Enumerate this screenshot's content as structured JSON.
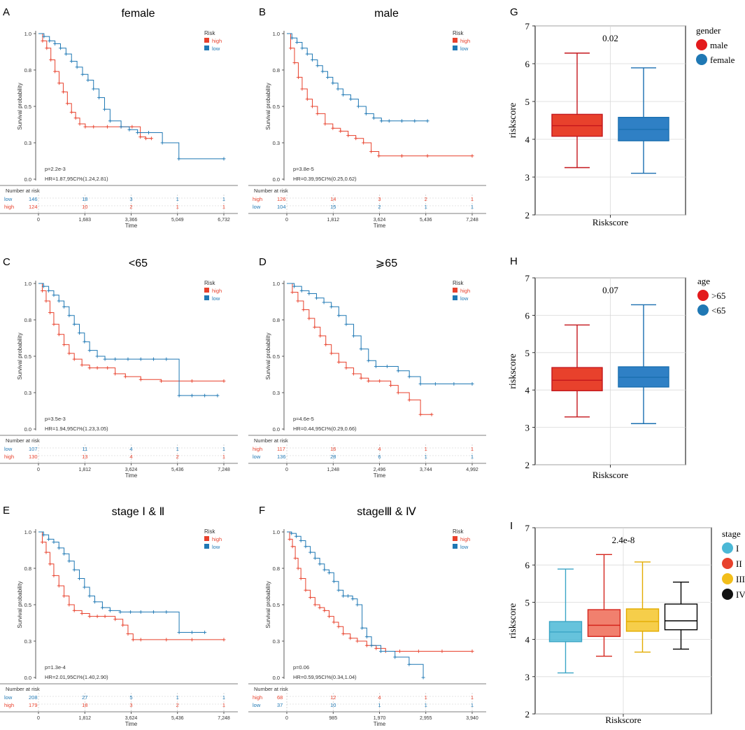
{
  "colors": {
    "high": "#e8412c",
    "low": "#1f78b4",
    "grid": "#d9d9d9",
    "axis": "#333333",
    "stage": [
      "#4bb8d6",
      "#e8412c",
      "#f2be1a",
      "#111111"
    ],
    "box_fill": [
      "#e8412c",
      "#2f80c5"
    ],
    "stage_fill": [
      "#4bb8d6",
      "#ee6a55",
      "#f5c52a",
      "#ffffff"
    ]
  },
  "chart_data": [
    {
      "panel": "A",
      "type": "line",
      "title": "female",
      "xlabel": "Time",
      "ylabel": "Survival probability",
      "xticks": [
        "0",
        "1,683",
        "3,366",
        "5,049",
        "6,732"
      ],
      "xlim": [
        0,
        6732
      ],
      "yticks": [
        "0.0",
        "0.3",
        "0.5",
        "0.8",
        "1.0"
      ],
      "ylim": [
        0,
        1
      ],
      "legend_title": "Risk",
      "legend": [
        "high",
        "low"
      ],
      "pval": "p=2.2e-3",
      "hr": "HR=1.87,95CI%(1.24,2.81)",
      "risk_title": "Number at risk",
      "risk_rows": [
        {
          "name": "low",
          "values": [
            "146",
            "18",
            "3",
            "1",
            "1"
          ]
        },
        {
          "name": "high",
          "values": [
            "124",
            "10",
            "2",
            "1",
            "1"
          ]
        }
      ],
      "series": [
        {
          "name": "high",
          "x": [
            0,
            150,
            300,
            450,
            600,
            750,
            900,
            1050,
            1200,
            1350,
            1500,
            1700,
            2000,
            2500,
            3000,
            3400,
            3700,
            3900,
            4100
          ],
          "y": [
            1.0,
            0.95,
            0.9,
            0.82,
            0.74,
            0.66,
            0.6,
            0.52,
            0.46,
            0.42,
            0.38,
            0.36,
            0.36,
            0.36,
            0.36,
            0.36,
            0.29,
            0.28,
            0.28
          ]
        },
        {
          "name": "low",
          "x": [
            0,
            200,
            400,
            600,
            800,
            1000,
            1200,
            1400,
            1600,
            1800,
            2000,
            2200,
            2400,
            2600,
            3000,
            3300,
            3600,
            4000,
            4500,
            5100,
            6732
          ],
          "y": [
            1.0,
            0.98,
            0.95,
            0.93,
            0.9,
            0.86,
            0.81,
            0.77,
            0.72,
            0.68,
            0.62,
            0.56,
            0.48,
            0.4,
            0.36,
            0.34,
            0.32,
            0.32,
            0.25,
            0.14,
            0.14
          ]
        }
      ]
    },
    {
      "panel": "B",
      "type": "line",
      "title": "male",
      "xlabel": "Time",
      "ylabel": "Survival probability",
      "xticks": [
        "0",
        "1,812",
        "3,624",
        "5,436",
        "7,248"
      ],
      "xlim": [
        0,
        7248
      ],
      "yticks": [
        "0.0",
        "0.3",
        "0.5",
        "0.8",
        "1.0"
      ],
      "ylim": [
        0,
        1
      ],
      "legend_title": "Risk",
      "legend": [
        "high",
        "low"
      ],
      "pval": "p=3.8e-5",
      "hr": "HR=0.39,95CI%(0.25,0.62)",
      "risk_title": "Number at risk",
      "risk_rows": [
        {
          "name": "high",
          "values": [
            "126",
            "14",
            "3",
            "2",
            "1"
          ]
        },
        {
          "name": "low",
          "values": [
            "104",
            "15",
            "2",
            "1",
            "1"
          ]
        }
      ],
      "series": [
        {
          "name": "high",
          "x": [
            0,
            150,
            300,
            450,
            600,
            800,
            1000,
            1200,
            1500,
            1800,
            2100,
            2400,
            2700,
            3000,
            3300,
            3600,
            4500,
            5500,
            7248
          ],
          "y": [
            1.0,
            0.9,
            0.8,
            0.7,
            0.62,
            0.55,
            0.5,
            0.45,
            0.38,
            0.35,
            0.33,
            0.3,
            0.28,
            0.25,
            0.19,
            0.16,
            0.16,
            0.16,
            0.16
          ]
        },
        {
          "name": "low",
          "x": [
            0,
            200,
            400,
            600,
            800,
            1000,
            1200,
            1400,
            1600,
            1800,
            2000,
            2200,
            2500,
            2800,
            3100,
            3400,
            3700,
            4000,
            4500,
            5000,
            5500
          ],
          "y": [
            1.0,
            0.97,
            0.94,
            0.9,
            0.86,
            0.82,
            0.78,
            0.74,
            0.7,
            0.66,
            0.62,
            0.58,
            0.55,
            0.5,
            0.45,
            0.42,
            0.4,
            0.4,
            0.4,
            0.4,
            0.4
          ]
        }
      ]
    },
    {
      "panel": "C",
      "type": "line",
      "title": "<65",
      "xlabel": "Time",
      "ylabel": "Survival probability",
      "xticks": [
        "0",
        "1,812",
        "3,624",
        "5,436",
        "7,248"
      ],
      "xlim": [
        0,
        7248
      ],
      "yticks": [
        "0.0",
        "0.3",
        "0.5",
        "0.8",
        "1.0"
      ],
      "ylim": [
        0,
        1
      ],
      "legend_title": "Risk",
      "legend": [
        "high",
        "low"
      ],
      "pval": "p=3.5e-3",
      "hr": "HR=1.94,95CI%(1.23,3.05)",
      "risk_title": "Number at risk",
      "risk_rows": [
        {
          "name": "low",
          "values": [
            "107",
            "11",
            "4",
            "1",
            "1"
          ]
        },
        {
          "name": "high",
          "values": [
            "130",
            "13",
            "4",
            "2",
            "1"
          ]
        }
      ],
      "series": [
        {
          "name": "high",
          "x": [
            0,
            150,
            300,
            450,
            600,
            800,
            1000,
            1200,
            1400,
            1700,
            2000,
            2300,
            2700,
            3000,
            3400,
            4000,
            4800,
            6000,
            7248
          ],
          "y": [
            1.0,
            0.95,
            0.88,
            0.8,
            0.72,
            0.65,
            0.58,
            0.52,
            0.48,
            0.44,
            0.42,
            0.42,
            0.42,
            0.38,
            0.36,
            0.34,
            0.33,
            0.33,
            0.33
          ]
        },
        {
          "name": "low",
          "x": [
            0,
            200,
            400,
            600,
            800,
            1000,
            1200,
            1400,
            1600,
            1800,
            2000,
            2300,
            2600,
            3000,
            3500,
            4000,
            4500,
            5000,
            5500,
            6000,
            6500,
            7000
          ],
          "y": [
            1.0,
            0.98,
            0.95,
            0.92,
            0.88,
            0.84,
            0.78,
            0.72,
            0.66,
            0.6,
            0.54,
            0.5,
            0.48,
            0.48,
            0.48,
            0.48,
            0.48,
            0.48,
            0.23,
            0.23,
            0.23,
            0.23
          ]
        }
      ]
    },
    {
      "panel": "D",
      "type": "line",
      "title": "⩾65",
      "xlabel": "Time",
      "ylabel": "Survival probability",
      "xticks": [
        "0",
        "1,248",
        "2,496",
        "3,744",
        "4,992"
      ],
      "xlim": [
        0,
        4992
      ],
      "yticks": [
        "0.0",
        "0.3",
        "0.5",
        "0.8",
        "1.0"
      ],
      "ylim": [
        0,
        1
      ],
      "legend_title": "Risk",
      "legend": [
        "high",
        "low"
      ],
      "pval": "p=4.6e-5",
      "hr": "HR=0.44,95CI%(0.29,0.66)",
      "risk_title": "Number at risk",
      "risk_rows": [
        {
          "name": "high",
          "values": [
            "117",
            "16",
            "4",
            "1",
            "1"
          ]
        },
        {
          "name": "low",
          "values": [
            "136",
            "28",
            "6",
            "1",
            "1"
          ]
        }
      ],
      "series": [
        {
          "name": "high",
          "x": [
            0,
            150,
            300,
            450,
            600,
            750,
            900,
            1050,
            1200,
            1400,
            1600,
            1800,
            2000,
            2200,
            2500,
            2800,
            3000,
            3300,
            3600,
            3900
          ],
          "y": [
            1.0,
            0.94,
            0.88,
            0.82,
            0.76,
            0.7,
            0.64,
            0.58,
            0.52,
            0.46,
            0.42,
            0.38,
            0.35,
            0.33,
            0.33,
            0.3,
            0.25,
            0.2,
            0.1,
            0.1
          ]
        },
        {
          "name": "low",
          "x": [
            0,
            200,
            400,
            600,
            800,
            1000,
            1200,
            1400,
            1600,
            1800,
            2000,
            2200,
            2400,
            2700,
            3000,
            3300,
            3600,
            4000,
            4500,
            4992
          ],
          "y": [
            1.0,
            0.98,
            0.95,
            0.93,
            0.9,
            0.87,
            0.84,
            0.78,
            0.72,
            0.64,
            0.55,
            0.47,
            0.43,
            0.43,
            0.4,
            0.36,
            0.31,
            0.31,
            0.31,
            0.31
          ]
        }
      ]
    },
    {
      "panel": "E",
      "type": "line",
      "title": "stage Ⅰ & Ⅱ",
      "xlabel": "Time",
      "ylabel": "Survival probability",
      "xticks": [
        "0",
        "1,812",
        "3,624",
        "5,436",
        "7,248"
      ],
      "xlim": [
        0,
        7248
      ],
      "yticks": [
        "0.0",
        "0.3",
        "0.5",
        "0.8",
        "1.0"
      ],
      "ylim": [
        0,
        1
      ],
      "legend_title": "Risk",
      "legend": [
        "high",
        "low"
      ],
      "pval": "p=1.3e-4",
      "hr": "HR=2.01,95CI%(1.40,2.90)",
      "risk_title": "Number at risk",
      "risk_rows": [
        {
          "name": "low",
          "values": [
            "208",
            "27",
            "5",
            "1",
            "1"
          ]
        },
        {
          "name": "high",
          "values": [
            "179",
            "18",
            "3",
            "2",
            "1"
          ]
        }
      ],
      "series": [
        {
          "name": "high",
          "x": [
            0,
            150,
            300,
            450,
            600,
            800,
            1000,
            1200,
            1400,
            1700,
            2000,
            2300,
            2600,
            3000,
            3300,
            3500,
            3700,
            4000,
            5000,
            6000,
            7248
          ],
          "y": [
            1.0,
            0.93,
            0.86,
            0.78,
            0.7,
            0.63,
            0.56,
            0.5,
            0.46,
            0.44,
            0.42,
            0.42,
            0.42,
            0.4,
            0.36,
            0.3,
            0.26,
            0.26,
            0.26,
            0.26,
            0.26
          ]
        },
        {
          "name": "low",
          "x": [
            0,
            200,
            400,
            600,
            800,
            1000,
            1200,
            1400,
            1600,
            1800,
            2000,
            2200,
            2500,
            2800,
            3200,
            3600,
            4000,
            4500,
            5000,
            5500,
            6000,
            6500
          ],
          "y": [
            1.0,
            0.98,
            0.95,
            0.93,
            0.89,
            0.85,
            0.8,
            0.74,
            0.68,
            0.62,
            0.56,
            0.52,
            0.48,
            0.46,
            0.45,
            0.45,
            0.45,
            0.45,
            0.45,
            0.31,
            0.31,
            0.31
          ]
        }
      ]
    },
    {
      "panel": "F",
      "type": "line",
      "title": "stageⅢ & Ⅳ",
      "xlabel": "Time",
      "ylabel": "Survival probability",
      "xticks": [
        "0",
        "985",
        "1,970",
        "2,955",
        "3,940"
      ],
      "xlim": [
        0,
        3940
      ],
      "yticks": [
        "0.0",
        "0.3",
        "0.5",
        "0.8",
        "1.0"
      ],
      "ylim": [
        0,
        1
      ],
      "legend_title": "Risk",
      "legend": [
        "high",
        "low"
      ],
      "pval": "p=0.06",
      "hr": "HR=0.59,95CI%(0.34,1.04)",
      "risk_title": "Number at risk",
      "risk_rows": [
        {
          "name": "high",
          "values": [
            "68",
            "12",
            "4",
            "1",
            "1"
          ]
        },
        {
          "name": "low",
          "values": [
            "37",
            "10",
            "1",
            "1",
            "1"
          ]
        }
      ],
      "series": [
        {
          "name": "high",
          "x": [
            0,
            60,
            120,
            180,
            240,
            300,
            400,
            500,
            600,
            700,
            800,
            900,
            1000,
            1100,
            1200,
            1350,
            1500,
            1700,
            1900,
            2100,
            2400,
            2800,
            3300,
            3940
          ],
          "y": [
            1.0,
            0.95,
            0.9,
            0.82,
            0.75,
            0.68,
            0.6,
            0.55,
            0.5,
            0.48,
            0.46,
            0.42,
            0.38,
            0.35,
            0.3,
            0.27,
            0.25,
            0.22,
            0.2,
            0.18,
            0.18,
            0.18,
            0.18,
            0.18
          ]
        },
        {
          "name": "low",
          "x": [
            0,
            100,
            200,
            300,
            400,
            500,
            600,
            700,
            800,
            900,
            1000,
            1100,
            1200,
            1300,
            1400,
            1500,
            1600,
            1700,
            1800,
            2000,
            2300,
            2600,
            2900
          ],
          "y": [
            1.0,
            0.99,
            0.97,
            0.94,
            0.9,
            0.86,
            0.82,
            0.78,
            0.74,
            0.72,
            0.66,
            0.6,
            0.56,
            0.56,
            0.54,
            0.5,
            0.34,
            0.28,
            0.22,
            0.18,
            0.14,
            0.09,
            0.0
          ]
        }
      ]
    },
    {
      "panel": "G",
      "type": "box",
      "title": "0.02",
      "xlabel": "Riskscore",
      "ylabel": "riskscore",
      "ylim": [
        2,
        7
      ],
      "yticks": [
        "2",
        "3",
        "4",
        "5",
        "6",
        "7"
      ],
      "legend_title": "gender",
      "legend": [
        "male",
        "female"
      ],
      "boxes": [
        {
          "name": "male",
          "min": 3.25,
          "q1": 4.08,
          "median": 4.36,
          "q3": 4.66,
          "max": 6.28
        },
        {
          "name": "female",
          "min": 3.1,
          "q1": 3.96,
          "median": 4.26,
          "q3": 4.58,
          "max": 5.89
        }
      ]
    },
    {
      "panel": "H",
      "type": "box",
      "title": "0.07",
      "xlabel": "Riskscore",
      "ylabel": "riskscore",
      "ylim": [
        2,
        7
      ],
      "yticks": [
        "2",
        "3",
        "4",
        "5",
        "6",
        "7"
      ],
      "legend_title": "age",
      "legend": [
        ">65",
        "<65"
      ],
      "boxes": [
        {
          "name": ">65",
          "min": 3.28,
          "q1": 3.98,
          "median": 4.26,
          "q3": 4.6,
          "max": 5.74
        },
        {
          "name": "<65",
          "min": 3.1,
          "q1": 4.08,
          "median": 4.34,
          "q3": 4.62,
          "max": 6.28
        }
      ]
    },
    {
      "panel": "I",
      "type": "box",
      "title": "2.4e-8",
      "xlabel": "Riskscore",
      "ylabel": "riskscore",
      "ylim": [
        2,
        7
      ],
      "yticks": [
        "2",
        "3",
        "4",
        "5",
        "6",
        "7"
      ],
      "legend_title": "stage",
      "legend": [
        "I",
        "II",
        "III",
        "IV"
      ],
      "boxes": [
        {
          "name": "I",
          "min": 3.1,
          "q1": 3.94,
          "median": 4.2,
          "q3": 4.48,
          "max": 5.89
        },
        {
          "name": "II",
          "min": 3.55,
          "q1": 4.08,
          "median": 4.38,
          "q3": 4.8,
          "max": 6.28
        },
        {
          "name": "III",
          "min": 3.66,
          "q1": 4.22,
          "median": 4.48,
          "q3": 4.82,
          "max": 6.08
        },
        {
          "name": "IV",
          "min": 3.74,
          "q1": 4.26,
          "median": 4.5,
          "q3": 4.95,
          "max": 5.54
        }
      ]
    }
  ]
}
